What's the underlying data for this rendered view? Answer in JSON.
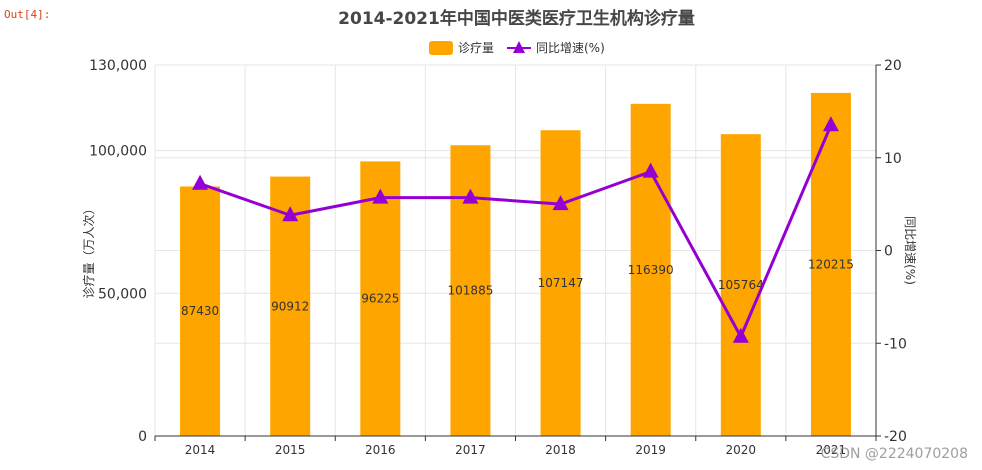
{
  "prompt": "Out[4]:",
  "watermark": "CSDN @2224070208",
  "colors": {
    "bar": "#ffa500",
    "line": "#9400d3",
    "grid": "#e6e6e6",
    "axis": "#333333"
  },
  "chart_data": {
    "type": "bar",
    "title": "2014-2021年中国中医类医疗卫生机构诊疗量",
    "categories": [
      "2014",
      "2015",
      "2016",
      "2017",
      "2018",
      "2019",
      "2020",
      "2021"
    ],
    "series": [
      {
        "name": "诊疗量",
        "type": "bar",
        "axis": "left",
        "values": [
          87430,
          90912,
          96225,
          101885,
          107147,
          116390,
          105764,
          120215
        ]
      },
      {
        "name": "同比增速(%)",
        "type": "line",
        "axis": "right",
        "values": [
          7.2,
          3.8,
          5.7,
          5.7,
          5.0,
          8.5,
          -9.3,
          13.5
        ]
      }
    ],
    "ylabel": "诊疗量（万人次）",
    "y2label": "同比增速(%)",
    "ylim": [
      0,
      130000
    ],
    "yticks": [
      "0",
      "50,000",
      "100,000",
      "130,000"
    ],
    "y2lim": [
      -20,
      20
    ],
    "y2ticks": [
      "-20",
      "-10",
      "0",
      "10",
      "20"
    ],
    "legend": "top-center",
    "grid": true
  }
}
